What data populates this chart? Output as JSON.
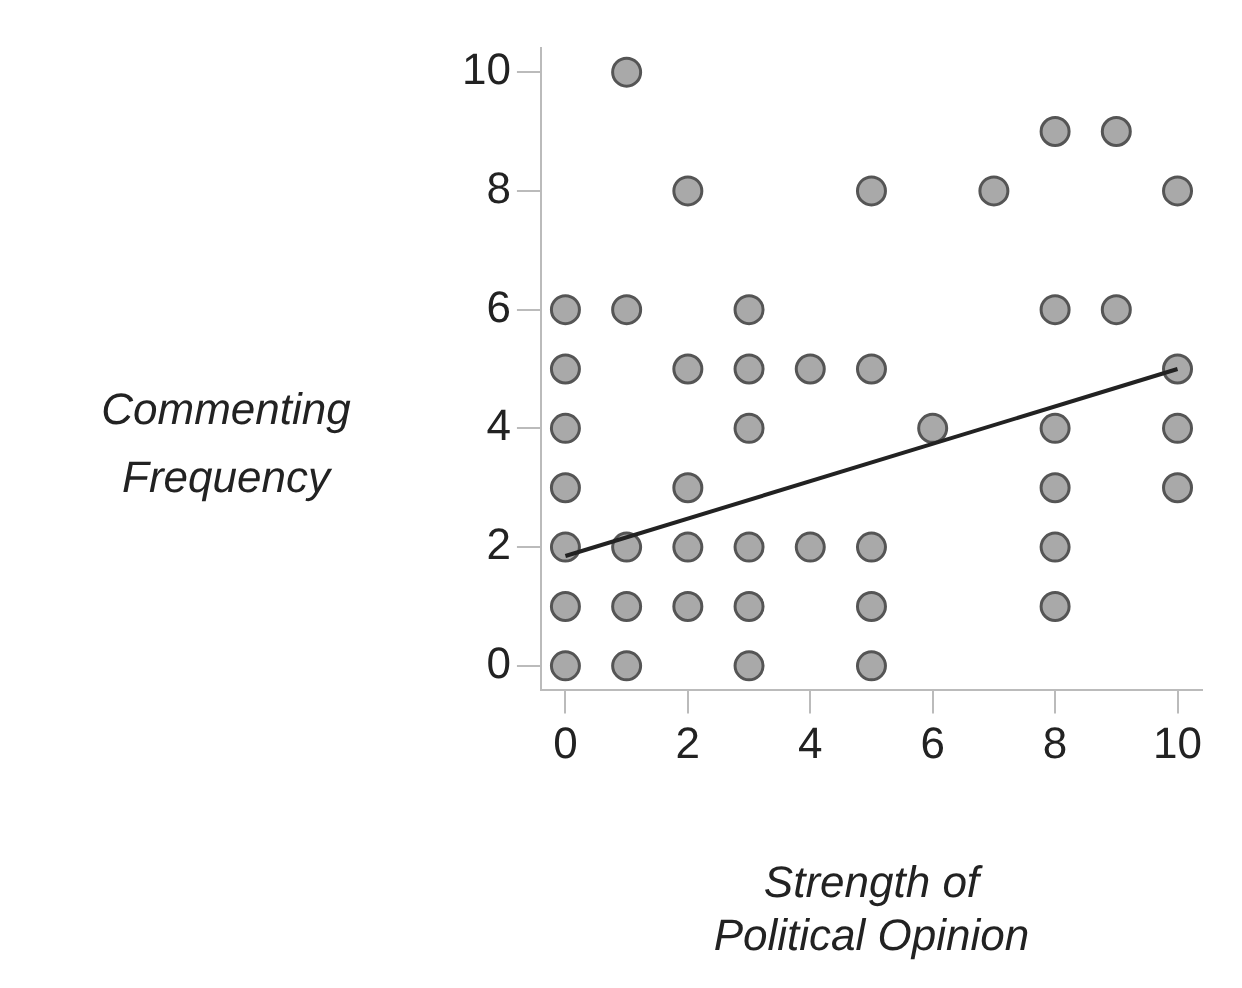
{
  "chart_data": {
    "type": "scatter",
    "xlabel": "Strength of Political Opinion",
    "ylabel": "Commenting Frequency",
    "xlim": [
      -0.4,
      10.4
    ],
    "ylim": [
      -0.4,
      10.4
    ],
    "xticks": [
      0,
      2,
      4,
      6,
      8,
      10
    ],
    "yticks": [
      0,
      2,
      4,
      6,
      8,
      10
    ],
    "grid": false,
    "legend": false,
    "series": [
      {
        "marker": "circle",
        "color": "#a9a9a9",
        "x": [
          0,
          0,
          0,
          0,
          0,
          0,
          0,
          1,
          1,
          1,
          1,
          1,
          2,
          2,
          2,
          2,
          2,
          3,
          3,
          3,
          3,
          3,
          3,
          4,
          4,
          5,
          5,
          5,
          5,
          5,
          6,
          7,
          8,
          8,
          8,
          8,
          8,
          8,
          9,
          9,
          10,
          10,
          10,
          10
        ],
        "values": [
          0,
          1,
          2,
          3,
          4,
          5,
          6,
          10,
          6,
          2,
          1,
          0,
          8,
          5,
          3,
          2,
          1,
          6,
          5,
          4,
          2,
          1,
          0,
          5,
          2,
          8,
          5,
          2,
          1,
          0,
          4,
          8,
          9,
          6,
          4,
          3,
          2,
          1,
          9,
          6,
          8,
          5,
          4,
          3
        ]
      },
      {
        "type": "line",
        "marker": "none",
        "color": "#222222",
        "x": [
          0,
          10
        ],
        "values": [
          1.85,
          5
        ]
      }
    ]
  }
}
